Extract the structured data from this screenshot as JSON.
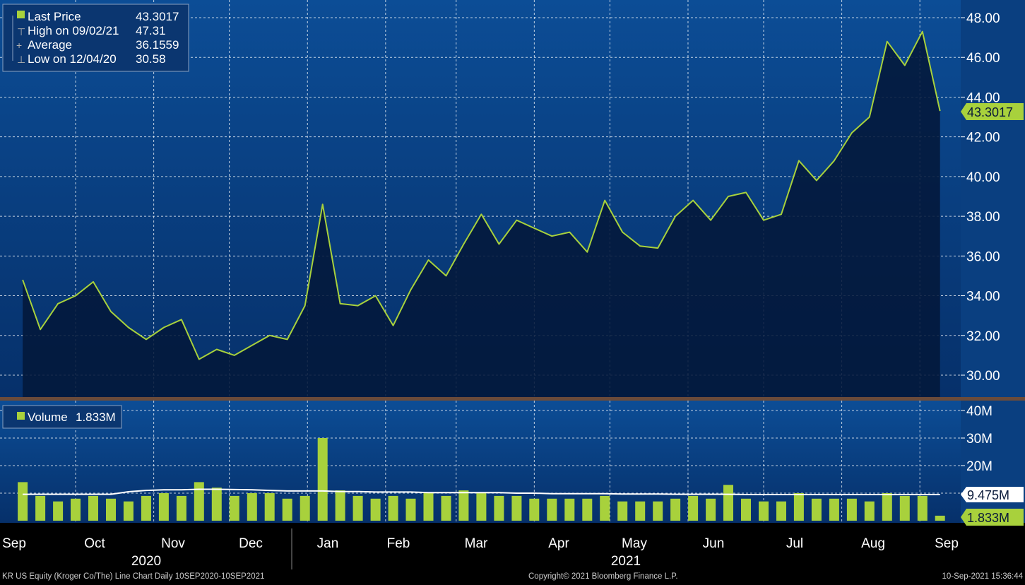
{
  "colors": {
    "bg_top": "#0c4d96",
    "bg_bottom": "#062a5e",
    "line": "#a8d13c",
    "area": "#03183a",
    "bar": "#a8d13c",
    "avg_line": "#ffffff",
    "grid": "#ffffff"
  },
  "legend": {
    "price": [
      {
        "label": "Last Price",
        "value": "43.3017"
      },
      {
        "label": "High on 09/02/21",
        "value": "47.31"
      },
      {
        "label": "Average",
        "value": "36.1559"
      },
      {
        "label": "Low on 12/04/20",
        "value": "30.58"
      }
    ],
    "volume": {
      "label": "Volume",
      "value": "1.833M"
    }
  },
  "tags": {
    "last_price": "43.3017",
    "volume_avg": "9.475M",
    "volume_last": "1.833M"
  },
  "footer": {
    "left": "KR US Equity (Kroger Co/The) Line Chart  Daily 10SEP2020-10SEP2021",
    "center": "Copyright© 2021 Bloomberg Finance L.P.",
    "right": "10-Sep-2021 15:36:44"
  },
  "chart_data": [
    {
      "type": "area",
      "title": "",
      "xlabel": "",
      "ylabel": "",
      "y_axis_side": "right",
      "grid": true,
      "ylim": [
        29,
        48.5
      ],
      "yticks": [
        "30.00",
        "32.00",
        "34.00",
        "36.00",
        "38.00",
        "40.00",
        "42.00",
        "44.00",
        "46.00",
        "48.00"
      ],
      "x_months": [
        "Sep",
        "Oct",
        "Nov",
        "Dec",
        "Jan",
        "Feb",
        "Mar",
        "Apr",
        "May",
        "Jun",
        "Jul",
        "Aug",
        "Sep"
      ],
      "x_years": [
        "2020",
        "2021"
      ],
      "x": [
        "2020-09-10",
        "2020-09-17",
        "2020-09-24",
        "2020-10-01",
        "2020-10-08",
        "2020-10-15",
        "2020-10-22",
        "2020-10-29",
        "2020-11-05",
        "2020-11-12",
        "2020-11-19",
        "2020-11-26",
        "2020-12-03",
        "2020-12-10",
        "2020-12-17",
        "2020-12-24",
        "2020-12-31",
        "2021-01-07",
        "2021-01-14",
        "2021-01-21",
        "2021-01-28",
        "2021-02-04",
        "2021-02-11",
        "2021-02-18",
        "2021-02-25",
        "2021-03-04",
        "2021-03-11",
        "2021-03-18",
        "2021-03-25",
        "2021-04-01",
        "2021-04-08",
        "2021-04-15",
        "2021-04-22",
        "2021-04-29",
        "2021-05-06",
        "2021-05-13",
        "2021-05-20",
        "2021-05-27",
        "2021-06-03",
        "2021-06-10",
        "2021-06-17",
        "2021-06-24",
        "2021-07-01",
        "2021-07-08",
        "2021-07-15",
        "2021-07-22",
        "2021-07-29",
        "2021-08-05",
        "2021-08-12",
        "2021-08-19",
        "2021-08-26",
        "2021-09-02",
        "2021-09-09"
      ],
      "series": [
        {
          "values": [
            34.8,
            32.3,
            33.6,
            34.0,
            34.7,
            33.2,
            32.4,
            31.8,
            32.4,
            32.8,
            30.8,
            31.3,
            31.0,
            31.5,
            32.0,
            31.8,
            33.5,
            38.6,
            33.6,
            33.5,
            34.0,
            32.5,
            34.3,
            35.8,
            35.0,
            36.6,
            38.1,
            36.6,
            37.8,
            37.4,
            37.0,
            37.2,
            36.2,
            38.8,
            37.2,
            36.5,
            36.4,
            38.0,
            38.8,
            37.8,
            39.0,
            39.2,
            37.8,
            38.1,
            40.8,
            39.8,
            40.8,
            42.2,
            43.0,
            46.8,
            45.6,
            47.3,
            43.3
          ]
        }
      ]
    },
    {
      "type": "bar",
      "title": "",
      "y_axis_side": "right",
      "grid": true,
      "ylim": [
        0,
        42
      ],
      "yticks": [
        "10M",
        "20M",
        "30M",
        "40M"
      ],
      "x": [
        "2020-09-10",
        "2020-09-17",
        "2020-09-24",
        "2020-10-01",
        "2020-10-08",
        "2020-10-15",
        "2020-10-22",
        "2020-10-29",
        "2020-11-05",
        "2020-11-12",
        "2020-11-19",
        "2020-11-26",
        "2020-12-03",
        "2020-12-10",
        "2020-12-17",
        "2020-12-24",
        "2020-12-31",
        "2021-01-07",
        "2021-01-14",
        "2021-01-21",
        "2021-01-28",
        "2021-02-04",
        "2021-02-11",
        "2021-02-18",
        "2021-02-25",
        "2021-03-04",
        "2021-03-11",
        "2021-03-18",
        "2021-03-25",
        "2021-04-01",
        "2021-04-08",
        "2021-04-15",
        "2021-04-22",
        "2021-04-29",
        "2021-05-06",
        "2021-05-13",
        "2021-05-20",
        "2021-05-27",
        "2021-06-03",
        "2021-06-10",
        "2021-06-17",
        "2021-06-24",
        "2021-07-01",
        "2021-07-08",
        "2021-07-15",
        "2021-07-22",
        "2021-07-29",
        "2021-08-05",
        "2021-08-12",
        "2021-08-19",
        "2021-08-26",
        "2021-09-02",
        "2021-09-09"
      ],
      "series": [
        {
          "values": [
            14,
            9,
            7,
            8,
            9,
            8,
            7,
            9,
            10,
            9,
            14,
            12,
            9,
            10,
            10,
            8,
            9,
            30,
            11,
            9,
            8,
            9,
            8,
            10,
            9,
            11,
            10,
            9,
            9,
            8,
            8,
            8,
            8,
            9,
            7,
            7,
            7,
            8,
            9,
            8,
            13,
            8,
            7,
            7,
            10,
            8,
            8,
            8,
            7,
            10,
            9,
            9,
            1.833
          ]
        },
        {
          "values": [
            9.6,
            9.6,
            9.6,
            9.6,
            9.6,
            9.6,
            10.5,
            11,
            11.2,
            11.2,
            11.4,
            11.4,
            11.3,
            11.2,
            11,
            10.8,
            10.8,
            10.8,
            10.6,
            10.6,
            10.4,
            10.4,
            10.4,
            10.2,
            10.2,
            10.2,
            10.2,
            10.2,
            10.0,
            10.0,
            9.8,
            9.8,
            9.8,
            9.8,
            9.7,
            9.7,
            9.7,
            9.6,
            9.6,
            9.6,
            9.6,
            9.5,
            9.5,
            9.5,
            9.5,
            9.5,
            9.5,
            9.5,
            9.5,
            9.5,
            9.5,
            9.475,
            9.475
          ]
        }
      ]
    }
  ]
}
